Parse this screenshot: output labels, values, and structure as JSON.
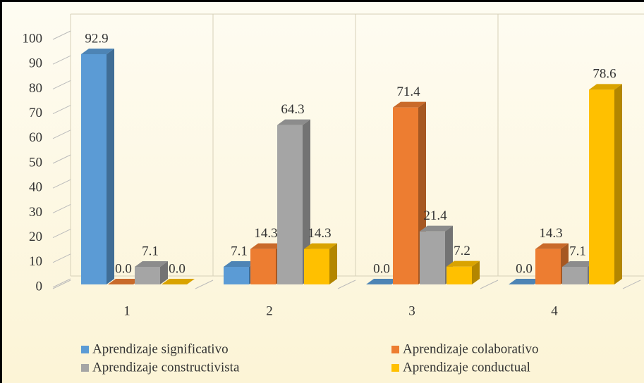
{
  "chart_data": {
    "type": "bar3d",
    "categories": [
      "1",
      "2",
      "3",
      "4"
    ],
    "series": [
      {
        "name": "Aprendizaje significativo",
        "color": "#5b9bd5",
        "values": [
          92.9,
          7.1,
          0.0,
          0.0
        ],
        "value_labels": [
          "92.9",
          "7.1",
          "0.0",
          "0.0"
        ]
      },
      {
        "name": "Aprendizaje colaborativo",
        "color": "#ed7d31",
        "values": [
          0.0,
          14.3,
          71.4,
          14.3
        ],
        "value_labels": [
          "0.0",
          "14.3",
          "71.4",
          "14.3"
        ]
      },
      {
        "name": "Aprendizaje constructivista",
        "color": "#a5a5a5",
        "values": [
          7.1,
          64.3,
          21.4,
          7.1
        ],
        "value_labels": [
          "7.1",
          "64.3",
          "21.4",
          "7.1"
        ]
      },
      {
        "name": "Aprendizaje conductual",
        "color": "#ffc000",
        "values": [
          0.0,
          14.3,
          7.2,
          78.6
        ],
        "value_labels": [
          "0.0",
          "14.3",
          "7.2",
          "78.6"
        ]
      }
    ],
    "ylim": [
      0,
      100
    ],
    "yticks": [
      0,
      10,
      20,
      30,
      40,
      50,
      60,
      70,
      80,
      90,
      100
    ],
    "legend": "bottom"
  }
}
